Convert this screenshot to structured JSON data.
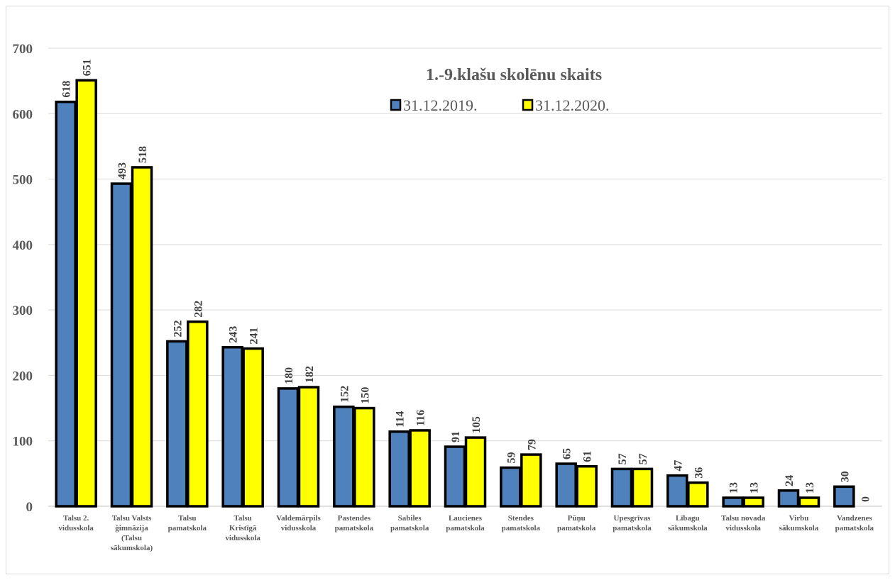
{
  "chart_data": {
    "type": "bar",
    "title": "1.-9.klašu skolēnu skaits",
    "xlabel": "",
    "ylabel": "",
    "ylim": [
      0,
      700
    ],
    "yticks": [
      0,
      100,
      200,
      300,
      400,
      500,
      600,
      700
    ],
    "grid": true,
    "legend_position": "top-right",
    "categories": [
      [
        "Talsu 2.",
        "vidusskola"
      ],
      [
        "Talsu Valsts",
        "ģimnāzija",
        "(Talsu",
        "sākumskola)"
      ],
      [
        "Talsu",
        "pamatskola"
      ],
      [
        "Talsu",
        "Kristīgā",
        "vidusskola"
      ],
      [
        "Valdemārpils",
        "vidusskola"
      ],
      [
        "Pastendes",
        "pamatskola"
      ],
      [
        "Sabiles",
        "pamatskola"
      ],
      [
        "Laucienes",
        "pamatskola"
      ],
      [
        "Stendes",
        "pamatskola"
      ],
      [
        "Pūņu",
        "pamatskola"
      ],
      [
        "Upesgrīvas",
        "pamatskola"
      ],
      [
        "Lībagu",
        "sākumskola"
      ],
      [
        "Talsu novada",
        "vidusskola"
      ],
      [
        "Virbu",
        "sākumskola"
      ],
      [
        "Vandzenes",
        "pamatskola"
      ]
    ],
    "series": [
      {
        "name": "31.12.2019.",
        "color": "#4f81bd",
        "values": [
          618,
          493,
          252,
          243,
          180,
          152,
          114,
          91,
          59,
          65,
          57,
          47,
          13,
          24,
          30
        ]
      },
      {
        "name": "31.12.2020.",
        "color": "#ffff00",
        "values": [
          651,
          518,
          282,
          241,
          182,
          150,
          116,
          105,
          79,
          61,
          57,
          36,
          13,
          13,
          0
        ]
      }
    ]
  }
}
